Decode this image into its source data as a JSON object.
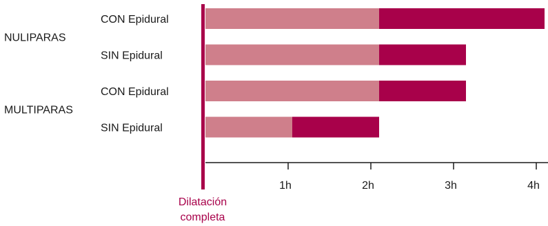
{
  "chart_data": {
    "type": "bar",
    "orientation": "horizontal",
    "stacked": true,
    "groups": [
      {
        "name": "NULIPARAS",
        "categories": [
          "CON Epidural",
          "SIN Epidural"
        ]
      },
      {
        "name": "MULTIPARAS",
        "categories": [
          "CON Epidural",
          "SIN Epidural"
        ]
      }
    ],
    "categories": [
      "CON Epidural",
      "SIN Epidural",
      "CON Epidural",
      "SIN Epidural"
    ],
    "series": [
      {
        "color": "#cf7f8b",
        "values": [
          2.1,
          2.1,
          2.1,
          1.05
        ]
      },
      {
        "color": "#a8014a",
        "values": [
          2.0,
          1.05,
          1.05,
          1.05
        ]
      }
    ],
    "totals": [
      4.1,
      3.15,
      3.15,
      2.1
    ],
    "x_ticks": [
      "1h",
      "2h",
      "3h",
      "4h"
    ],
    "xlim": [
      0,
      4.15
    ],
    "annotation": "Dilatación completa",
    "annotation_lines": [
      "Dilatación",
      "completa"
    ],
    "annotation_color": "#a8014a",
    "grid": false
  }
}
